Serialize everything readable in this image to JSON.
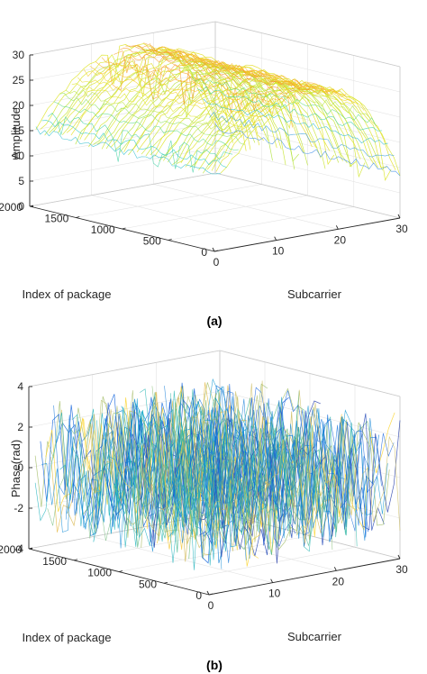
{
  "chart_data": [
    {
      "type": "surface",
      "panel_label": "(a)",
      "zlabel": "Amplitude",
      "xlabel": "Subcarrier",
      "ylabel": "Index of package",
      "zlim": [
        0,
        30
      ],
      "xlim": [
        0,
        30
      ],
      "ylim": [
        0,
        2000
      ],
      "z_ticks": [
        "0",
        "5",
        "10",
        "15",
        "20",
        "25",
        "30"
      ],
      "x_ticks": [
        "0",
        "10",
        "20",
        "30"
      ],
      "y_ticks": [
        "0",
        "500",
        "1000",
        "1500",
        "2000"
      ],
      "grid": true,
      "colormap": "parula",
      "amplitude_profile": {
        "subcarrier": [
          1,
          3,
          5,
          7,
          9,
          11,
          13,
          15,
          17,
          19,
          21,
          23,
          25,
          27,
          29,
          30
        ],
        "amplitude": [
          15,
          18,
          21,
          23,
          25,
          26.5,
          27.5,
          28,
          28,
          27.5,
          26.5,
          25,
          22,
          18,
          12,
          9
        ]
      }
    },
    {
      "type": "surface",
      "panel_label": "(b)",
      "zlabel": "Phase(rad)",
      "xlabel": "Subcarrier",
      "ylabel": "Index of package",
      "zlim": [
        -4,
        4
      ],
      "xlim": [
        0,
        30
      ],
      "ylim": [
        0,
        2000
      ],
      "z_ticks": [
        "-4",
        "-2",
        "0",
        "2",
        "4"
      ],
      "x_ticks": [
        "0",
        "10",
        "20",
        "30"
      ],
      "y_ticks": [
        "0",
        "500",
        "1000",
        "1500",
        "2000"
      ],
      "grid": true,
      "colormap": "parula",
      "phase_range": [
        -3.14,
        3.14
      ]
    }
  ]
}
